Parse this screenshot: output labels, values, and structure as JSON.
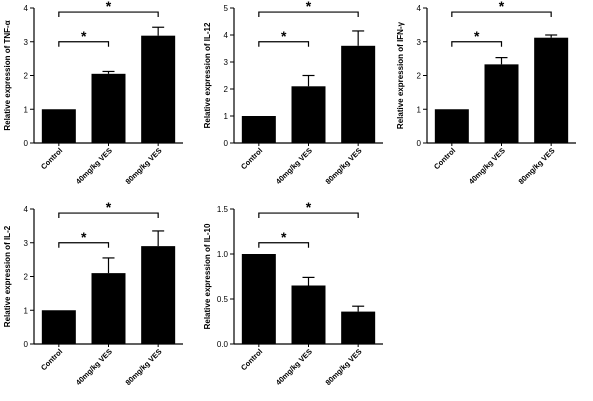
{
  "chart_data": [
    {
      "type": "bar",
      "categories": [
        "Control",
        "40mg/kg VES",
        "80mg/kg VES"
      ],
      "values": [
        1.0,
        2.05,
        3.18
      ],
      "errors": [
        0,
        0.07,
        0.25
      ],
      "ylabel": "Relative  expression of TNF-α",
      "ylim": [
        0,
        4
      ],
      "yticks": [
        "0",
        "1",
        "2",
        "3",
        "4"
      ],
      "significance": [
        {
          "from": 0,
          "to": 1,
          "label": "*"
        },
        {
          "from": 0,
          "to": 2,
          "label": "*"
        }
      ]
    },
    {
      "type": "bar",
      "categories": [
        "Control",
        "40mg/kg VES",
        "80mg/kg VES"
      ],
      "values": [
        1.0,
        2.1,
        3.6
      ],
      "errors": [
        0,
        0.4,
        0.55
      ],
      "ylabel": "Relative  expression of IL-12",
      "ylim": [
        0,
        5
      ],
      "yticks": [
        "0",
        "1",
        "2",
        "3",
        "4",
        "5"
      ],
      "significance": [
        {
          "from": 0,
          "to": 1,
          "label": "*"
        },
        {
          "from": 0,
          "to": 2,
          "label": "*"
        }
      ]
    },
    {
      "type": "bar",
      "categories": [
        "Control",
        "40mg/kg VES",
        "80mg/kg VES"
      ],
      "values": [
        1.0,
        2.33,
        3.12
      ],
      "errors": [
        0,
        0.2,
        0.08
      ],
      "ylabel": "Relative  expression of IFN-γ",
      "ylim": [
        0,
        4
      ],
      "yticks": [
        "0",
        "1",
        "2",
        "3",
        "4"
      ],
      "significance": [
        {
          "from": 0,
          "to": 1,
          "label": "*"
        },
        {
          "from": 0,
          "to": 2,
          "label": "*"
        }
      ]
    },
    {
      "type": "bar",
      "categories": [
        "Control",
        "40mg/kg VES",
        "80mg/kg VES"
      ],
      "values": [
        1.0,
        2.1,
        2.9
      ],
      "errors": [
        0,
        0.45,
        0.45
      ],
      "ylabel": "Relative  expression of IL-2",
      "ylim": [
        0,
        4
      ],
      "yticks": [
        "0",
        "1",
        "2",
        "3",
        "4"
      ],
      "significance": [
        {
          "from": 0,
          "to": 1,
          "label": "*"
        },
        {
          "from": 0,
          "to": 2,
          "label": "*"
        }
      ]
    },
    {
      "type": "bar",
      "categories": [
        "Control",
        "40mg/kg VES",
        "80mg/kg VES"
      ],
      "values": [
        1.0,
        0.65,
        0.36
      ],
      "errors": [
        0,
        0.09,
        0.06
      ],
      "ylabel": "Relative  expression of IL-10",
      "ylim": [
        0,
        1.5
      ],
      "yticks": [
        "0.0",
        "0.5",
        "1.0",
        "1.5"
      ],
      "significance": [
        {
          "from": 0,
          "to": 1,
          "label": "*"
        },
        {
          "from": 0,
          "to": 2,
          "label": "*"
        }
      ]
    }
  ],
  "colors": {
    "bar": "#000000",
    "axis": "#000000"
  }
}
